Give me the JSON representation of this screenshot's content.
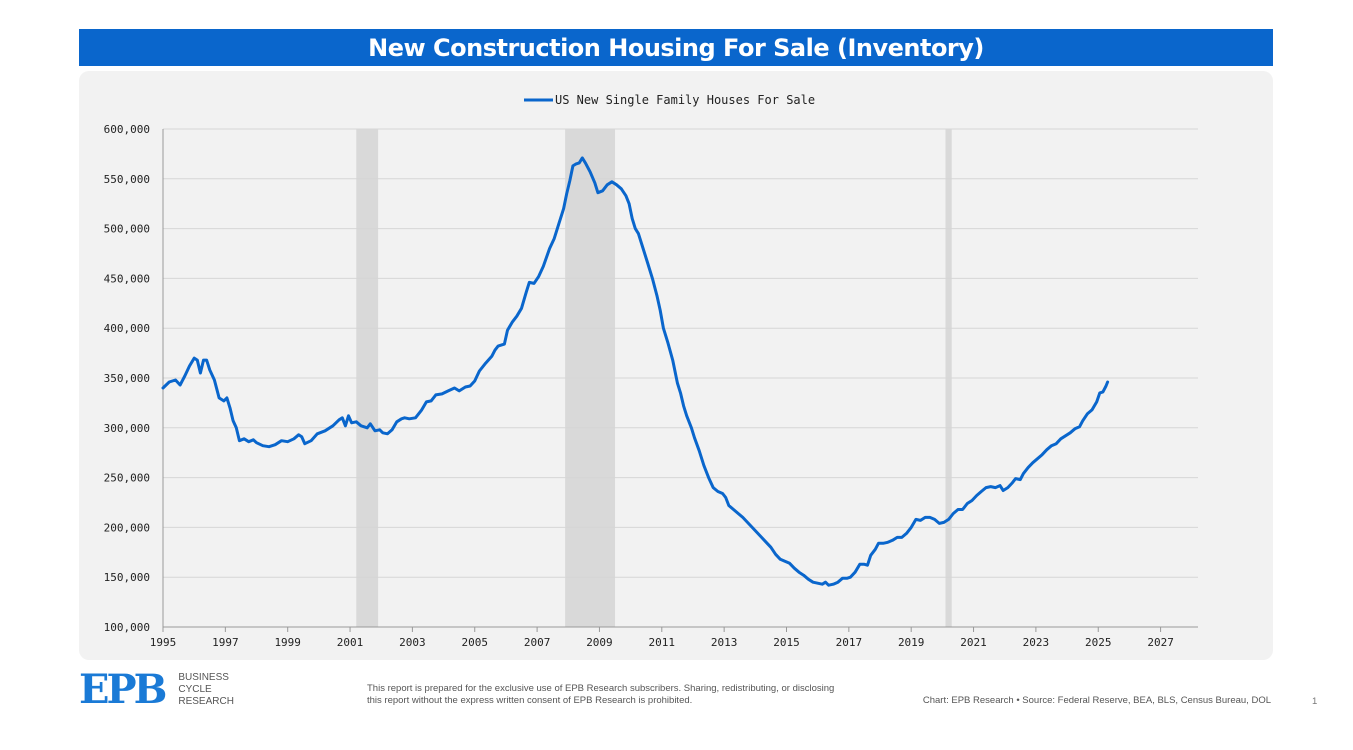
{
  "header": {
    "title": "New Construction Housing For Sale (Inventory)"
  },
  "footer": {
    "logo": "EPB",
    "logo_lines": [
      "BUSINESS",
      "CYCLE",
      "RESEARCH"
    ],
    "disclaimer": "This report is prepared for the exclusive use of EPB Research subscribers. Sharing, redistributing, or disclosing this report without the express written consent of EPB Research is prohibited.",
    "source": "Chart: EPB Research  •  Source: Federal Reserve, BEA, BLS, Census Bureau, DOL",
    "page_number": "1"
  },
  "colors": {
    "accent": "#0a66cc",
    "series": "#0a66cc",
    "recession": "#d9d9d9",
    "panel": "#f2f2f2"
  },
  "chart_data": {
    "type": "line",
    "title": "",
    "xlabel": "",
    "ylabel": "",
    "xlim": [
      1995,
      2028.2
    ],
    "ylim": [
      100000,
      600000
    ],
    "x_ticks": [
      "1995",
      "1997",
      "1999",
      "2001",
      "2003",
      "2005",
      "2007",
      "2009",
      "2011",
      "2013",
      "2015",
      "2017",
      "2019",
      "2021",
      "2023",
      "2025",
      "2027"
    ],
    "y_ticks": [
      "100,000",
      "150,000",
      "200,000",
      "250,000",
      "300,000",
      "350,000",
      "400,000",
      "450,000",
      "500,000",
      "550,000",
      "600,000"
    ],
    "grid": true,
    "legend_position": "top-center",
    "recessions": [
      [
        2001.2,
        2001.9
      ],
      [
        2007.9,
        2009.5
      ],
      [
        2020.1,
        2020.3
      ]
    ],
    "series": [
      {
        "name": "US New Single Family Houses For Sale",
        "points": [
          [
            1995.0,
            340000
          ],
          [
            1995.2,
            346000
          ],
          [
            1995.4,
            348000
          ],
          [
            1995.55,
            343000
          ],
          [
            1995.7,
            352000
          ],
          [
            1995.85,
            362000
          ],
          [
            1996.0,
            370000
          ],
          [
            1996.1,
            368000
          ],
          [
            1996.2,
            355000
          ],
          [
            1996.3,
            368000
          ],
          [
            1996.4,
            368000
          ],
          [
            1996.5,
            358000
          ],
          [
            1996.65,
            348000
          ],
          [
            1996.8,
            330000
          ],
          [
            1996.95,
            327000
          ],
          [
            1997.05,
            330000
          ],
          [
            1997.15,
            320000
          ],
          [
            1997.25,
            307000
          ],
          [
            1997.35,
            300000
          ],
          [
            1997.45,
            287000
          ],
          [
            1997.6,
            289000
          ],
          [
            1997.75,
            286000
          ],
          [
            1997.9,
            288000
          ],
          [
            1998.0,
            285000
          ],
          [
            1998.2,
            282000
          ],
          [
            1998.4,
            281000
          ],
          [
            1998.6,
            283000
          ],
          [
            1998.8,
            287000
          ],
          [
            1999.0,
            286000
          ],
          [
            1999.2,
            289000
          ],
          [
            1999.35,
            293000
          ],
          [
            1999.45,
            291000
          ],
          [
            1999.55,
            284000
          ],
          [
            1999.75,
            287000
          ],
          [
            1999.95,
            294000
          ],
          [
            2000.2,
            297000
          ],
          [
            2000.45,
            302000
          ],
          [
            2000.65,
            308000
          ],
          [
            2000.75,
            310000
          ],
          [
            2000.85,
            302000
          ],
          [
            2000.95,
            312000
          ],
          [
            2001.05,
            305000
          ],
          [
            2001.2,
            306000
          ],
          [
            2001.35,
            302000
          ],
          [
            2001.55,
            300000
          ],
          [
            2001.65,
            304000
          ],
          [
            2001.8,
            297000
          ],
          [
            2001.95,
            298000
          ],
          [
            2002.05,
            295000
          ],
          [
            2002.2,
            294000
          ],
          [
            2002.35,
            298000
          ],
          [
            2002.5,
            306000
          ],
          [
            2002.65,
            309000
          ],
          [
            2002.75,
            310000
          ],
          [
            2002.9,
            309000
          ],
          [
            2003.1,
            310000
          ],
          [
            2003.3,
            318000
          ],
          [
            2003.45,
            326000
          ],
          [
            2003.6,
            327000
          ],
          [
            2003.75,
            333000
          ],
          [
            2003.95,
            334000
          ],
          [
            2004.15,
            337000
          ],
          [
            2004.35,
            340000
          ],
          [
            2004.5,
            337000
          ],
          [
            2004.7,
            341000
          ],
          [
            2004.85,
            342000
          ],
          [
            2005.0,
            347000
          ],
          [
            2005.15,
            357000
          ],
          [
            2005.35,
            365000
          ],
          [
            2005.55,
            372000
          ],
          [
            2005.65,
            378000
          ],
          [
            2005.75,
            382000
          ],
          [
            2005.95,
            384000
          ],
          [
            2006.05,
            398000
          ],
          [
            2006.2,
            406000
          ],
          [
            2006.35,
            412000
          ],
          [
            2006.5,
            420000
          ],
          [
            2006.65,
            436000
          ],
          [
            2006.75,
            446000
          ],
          [
            2006.9,
            445000
          ],
          [
            2007.05,
            452000
          ],
          [
            2007.2,
            462000
          ],
          [
            2007.4,
            480000
          ],
          [
            2007.55,
            490000
          ],
          [
            2007.7,
            505000
          ],
          [
            2007.85,
            520000
          ],
          [
            2007.95,
            535000
          ],
          [
            2008.05,
            548000
          ],
          [
            2008.15,
            563000
          ],
          [
            2008.25,
            565000
          ],
          [
            2008.35,
            566000
          ],
          [
            2008.45,
            571000
          ],
          [
            2008.55,
            566000
          ],
          [
            2008.7,
            557000
          ],
          [
            2008.85,
            546000
          ],
          [
            2008.95,
            536000
          ],
          [
            2009.1,
            538000
          ],
          [
            2009.25,
            544000
          ],
          [
            2009.4,
            547000
          ],
          [
            2009.55,
            544000
          ],
          [
            2009.7,
            540000
          ],
          [
            2009.85,
            533000
          ],
          [
            2009.95,
            525000
          ],
          [
            2010.05,
            510000
          ],
          [
            2010.15,
            500000
          ],
          [
            2010.25,
            495000
          ],
          [
            2010.4,
            480000
          ],
          [
            2010.55,
            465000
          ],
          [
            2010.7,
            450000
          ],
          [
            2010.85,
            432000
          ],
          [
            2010.95,
            418000
          ],
          [
            2011.05,
            400000
          ],
          [
            2011.2,
            385000
          ],
          [
            2011.35,
            368000
          ],
          [
            2011.5,
            345000
          ],
          [
            2011.6,
            335000
          ],
          [
            2011.7,
            322000
          ],
          [
            2011.8,
            312000
          ],
          [
            2011.95,
            300000
          ],
          [
            2012.05,
            290000
          ],
          [
            2012.2,
            277000
          ],
          [
            2012.35,
            262000
          ],
          [
            2012.5,
            250000
          ],
          [
            2012.65,
            240000
          ],
          [
            2012.8,
            236000
          ],
          [
            2012.95,
            234000
          ],
          [
            2013.05,
            230000
          ],
          [
            2013.15,
            222000
          ],
          [
            2013.3,
            218000
          ],
          [
            2013.45,
            214000
          ],
          [
            2013.6,
            210000
          ],
          [
            2013.75,
            205000
          ],
          [
            2013.9,
            200000
          ],
          [
            2014.05,
            195000
          ],
          [
            2014.2,
            190000
          ],
          [
            2014.35,
            185000
          ],
          [
            2014.5,
            180000
          ],
          [
            2014.65,
            173000
          ],
          [
            2014.8,
            168000
          ],
          [
            2014.95,
            166000
          ],
          [
            2015.1,
            164000
          ],
          [
            2015.25,
            159000
          ],
          [
            2015.4,
            155000
          ],
          [
            2015.55,
            152000
          ],
          [
            2015.7,
            148000
          ],
          [
            2015.85,
            145000
          ],
          [
            2016.0,
            144000
          ],
          [
            2016.15,
            143000
          ],
          [
            2016.25,
            145000
          ],
          [
            2016.35,
            142000
          ],
          [
            2016.5,
            143000
          ],
          [
            2016.65,
            145000
          ],
          [
            2016.8,
            149000
          ],
          [
            2016.95,
            149000
          ],
          [
            2017.05,
            150000
          ],
          [
            2017.2,
            155000
          ],
          [
            2017.35,
            163000
          ],
          [
            2017.5,
            163000
          ],
          [
            2017.6,
            162000
          ],
          [
            2017.7,
            172000
          ],
          [
            2017.85,
            178000
          ],
          [
            2017.95,
            184000
          ],
          [
            2018.1,
            184000
          ],
          [
            2018.25,
            185000
          ],
          [
            2018.4,
            187000
          ],
          [
            2018.55,
            190000
          ],
          [
            2018.7,
            190000
          ],
          [
            2018.85,
            194000
          ],
          [
            2019.0,
            200000
          ],
          [
            2019.15,
            208000
          ],
          [
            2019.3,
            207000
          ],
          [
            2019.45,
            210000
          ],
          [
            2019.6,
            210000
          ],
          [
            2019.75,
            208000
          ],
          [
            2019.9,
            204000
          ],
          [
            2020.05,
            205000
          ],
          [
            2020.2,
            208000
          ],
          [
            2020.35,
            214000
          ],
          [
            2020.5,
            218000
          ],
          [
            2020.65,
            218000
          ],
          [
            2020.8,
            224000
          ],
          [
            2020.95,
            227000
          ],
          [
            2021.1,
            232000
          ],
          [
            2021.25,
            236000
          ],
          [
            2021.4,
            240000
          ],
          [
            2021.55,
            241000
          ],
          [
            2021.7,
            240000
          ],
          [
            2021.85,
            242000
          ],
          [
            2021.95,
            237000
          ],
          [
            2022.1,
            240000
          ],
          [
            2022.25,
            245000
          ],
          [
            2022.35,
            249000
          ],
          [
            2022.5,
            248000
          ],
          [
            2022.6,
            254000
          ],
          [
            2022.75,
            260000
          ],
          [
            2022.9,
            265000
          ],
          [
            2023.05,
            269000
          ],
          [
            2023.2,
            273000
          ],
          [
            2023.35,
            278000
          ],
          [
            2023.5,
            282000
          ],
          [
            2023.65,
            284000
          ],
          [
            2023.8,
            289000
          ],
          [
            2023.95,
            292000
          ],
          [
            2024.1,
            295000
          ],
          [
            2024.25,
            299000
          ],
          [
            2024.4,
            301000
          ],
          [
            2024.5,
            307000
          ],
          [
            2024.65,
            314000
          ],
          [
            2024.8,
            318000
          ],
          [
            2024.95,
            326000
          ],
          [
            2025.05,
            335000
          ],
          [
            2025.15,
            336000
          ],
          [
            2025.25,
            342000
          ],
          [
            2025.3,
            346000
          ]
        ]
      }
    ]
  }
}
